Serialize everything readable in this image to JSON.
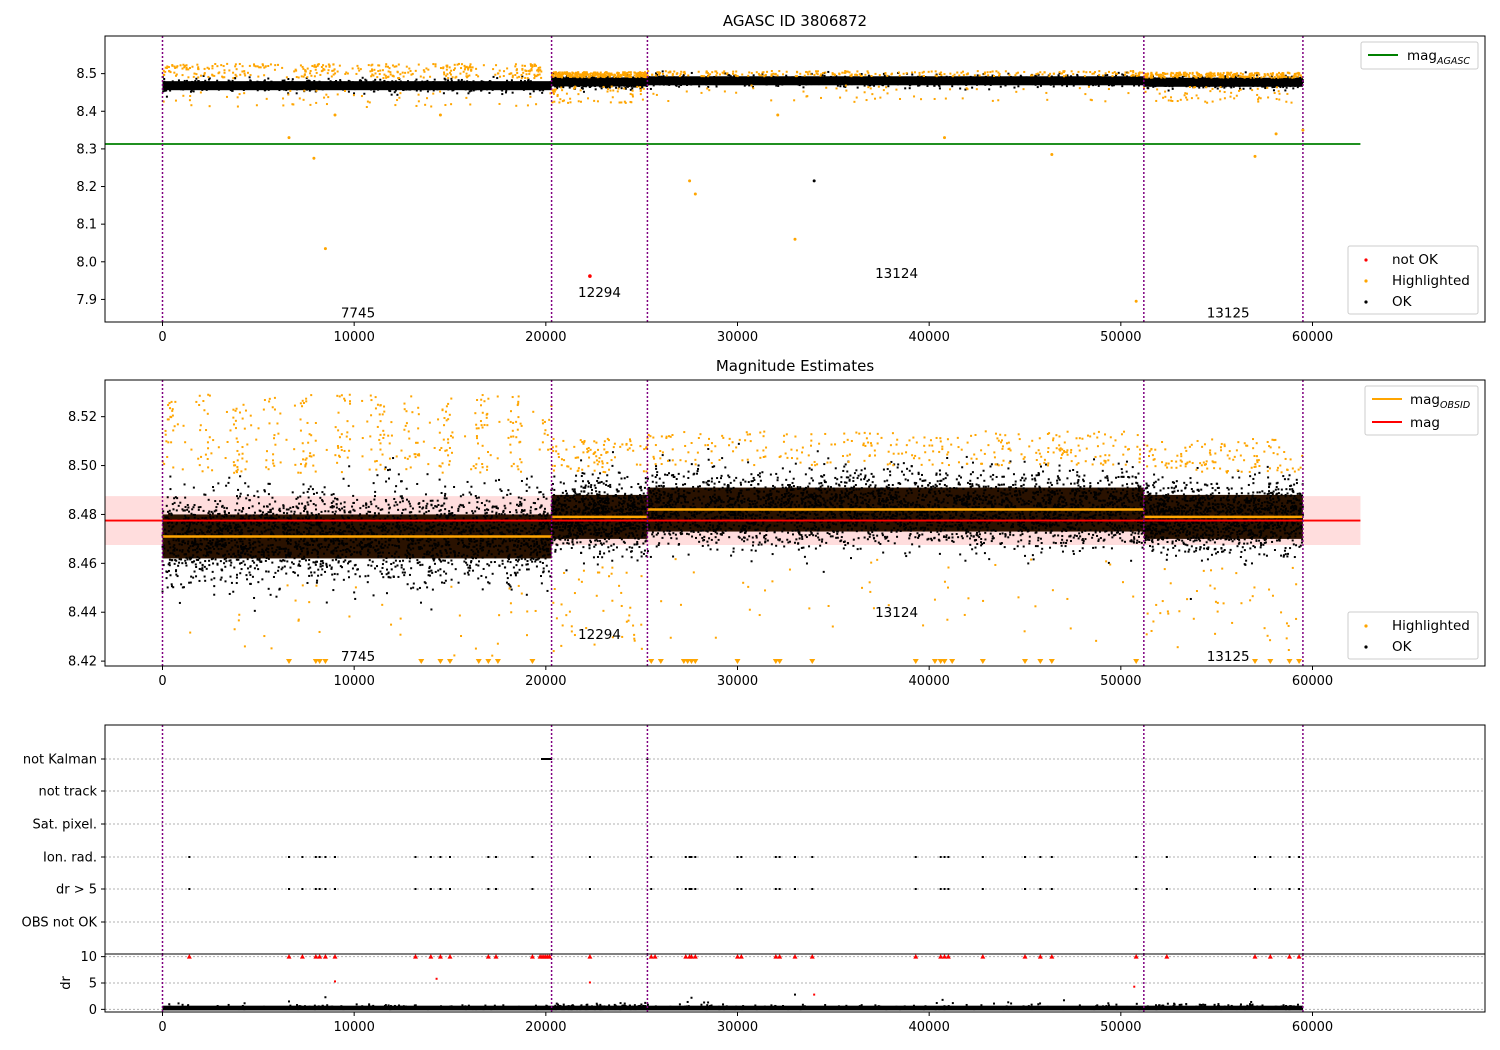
{
  "colors": {
    "ok": "#000000",
    "highlighted": "#ffa500",
    "not_ok": "#ff0000",
    "agasc_line": "#008000",
    "mag_line": "#ff0000",
    "obsid_line": "#ffa500",
    "obsid_boundary": "#800080",
    "mag_band": "#ffb3b3",
    "obsid_band": "#2a1200"
  },
  "chart_data": [
    {
      "id": "top",
      "type": "scatter",
      "title": "AGASC ID 3806872",
      "xlim": [
        -3000,
        69000
      ],
      "ylim": [
        7.84,
        8.6
      ],
      "x_ticks": [
        0,
        10000,
        20000,
        30000,
        40000,
        50000,
        60000
      ],
      "y_ticks": [
        7.9,
        8.0,
        8.1,
        8.2,
        8.3,
        8.4,
        8.5
      ],
      "y_tick_labels": [
        "7.9",
        "8.0",
        "8.1",
        "8.2",
        "8.3",
        "8.4",
        "8.5"
      ],
      "agasc_mag": 8.313,
      "obsids": [
        {
          "label": "7745",
          "x": 10200,
          "y": 7.865
        },
        {
          "label": "12294",
          "x": 22800,
          "y": 7.92
        },
        {
          "label": "13124",
          "x": 38300,
          "y": 7.97
        },
        {
          "label": "13125",
          "x": 55600,
          "y": 7.865
        }
      ],
      "legend_top": [
        {
          "label": "mag",
          "sub": "AGASC"
        }
      ],
      "legend_bottom": [
        "not OK",
        "Highlighted",
        "OK"
      ],
      "outliers_highlighted": [
        [
          6600,
          8.33
        ],
        [
          7900,
          8.275
        ],
        [
          8500,
          8.035
        ],
        [
          27500,
          8.215
        ],
        [
          27800,
          8.18
        ],
        [
          33000,
          8.06
        ],
        [
          50800,
          7.895
        ],
        [
          46400,
          8.285
        ],
        [
          57000,
          8.28
        ],
        [
          32100,
          8.39
        ],
        [
          40800,
          8.33
        ],
        [
          58100,
          8.34
        ],
        [
          59500,
          8.35
        ],
        [
          9000,
          8.39
        ],
        [
          14500,
          8.39
        ]
      ],
      "outliers_black": [
        [
          34000,
          8.215
        ]
      ],
      "outliers_not_ok": [
        [
          22300,
          7.962
        ]
      ]
    },
    {
      "id": "middle",
      "type": "scatter",
      "title": "Magnitude Estimates",
      "xlim": [
        -3000,
        69000
      ],
      "ylim": [
        8.418,
        8.535
      ],
      "x_ticks": [
        0,
        10000,
        20000,
        30000,
        40000,
        50000,
        60000
      ],
      "y_ticks": [
        8.42,
        8.44,
        8.46,
        8.48,
        8.5,
        8.52
      ],
      "y_tick_labels": [
        "8.42",
        "8.44",
        "8.46",
        "8.48",
        "8.50",
        "8.52"
      ],
      "mag": 8.4775,
      "mag_band": [
        8.4675,
        8.4875
      ],
      "obsid_mags": [
        {
          "start": 0,
          "end": 20300,
          "mag": 8.471
        },
        {
          "start": 20300,
          "end": 25300,
          "mag": 8.479
        },
        {
          "start": 25300,
          "end": 51200,
          "mag": 8.482
        },
        {
          "start": 51200,
          "end": 59500,
          "mag": 8.479
        }
      ],
      "obsids": [
        {
          "label": "7745",
          "x": 10200,
          "y": 8.422
        },
        {
          "label": "12294",
          "x": 22800,
          "y": 8.431
        },
        {
          "label": "13124",
          "x": 38300,
          "y": 8.44
        },
        {
          "label": "13125",
          "x": 55600,
          "y": 8.422
        }
      ],
      "legend_top": [
        {
          "label": "mag",
          "sub": "OBSID"
        },
        {
          "label": "mag",
          "sub": ""
        }
      ],
      "legend_bottom": [
        "Highlighted",
        "OK"
      ],
      "low_markers_x": [
        6600,
        8000,
        8200,
        8500,
        13500,
        14500,
        15000,
        16500,
        17000,
        17500,
        19300,
        25500,
        26000,
        27200,
        27400,
        27600,
        27800,
        30000,
        32000,
        32200,
        33900,
        39300,
        40300,
        40600,
        40800,
        41200,
        42800,
        45000,
        45800,
        46400,
        50800,
        57000,
        57800,
        58800,
        59300
      ]
    },
    {
      "id": "flags",
      "type": "scatter",
      "xlim": [
        -3000,
        69000
      ],
      "flag_labels": [
        "not Kalman",
        "not track",
        "Sat. pixel.",
        "Ion. rad.",
        "dr > 5",
        "OBS not OK"
      ],
      "flag_x": [
        1400,
        6600,
        7300,
        8000,
        8200,
        8500,
        9000,
        13200,
        14000,
        14500,
        15000,
        17000,
        17400,
        19300,
        22300,
        25500,
        27300,
        27500,
        27600,
        27800,
        30000,
        30200,
        32000,
        32200,
        33000,
        33900,
        39300,
        40600,
        40800,
        41000,
        42800,
        45000,
        45800,
        46400,
        50800,
        52400,
        57000,
        57800,
        58800,
        59300
      ],
      "not_kalman_range": [
        19800,
        20300
      ]
    },
    {
      "id": "dr",
      "type": "scatter",
      "ylabel": "dr",
      "xlim": [
        -3000,
        69000
      ],
      "ylim": [
        -0.5,
        10.5
      ],
      "x_ticks": [
        0,
        10000,
        20000,
        30000,
        40000,
        50000,
        60000
      ],
      "x_tick_labels": [
        "0",
        "10000",
        "20000",
        "30000",
        "40000",
        "50000",
        "60000"
      ],
      "y_ticks": [
        0,
        5,
        10
      ],
      "y_tick_labels": [
        "0",
        "5",
        "10"
      ],
      "red_at_10_x": [
        1400,
        6600,
        7300,
        8000,
        8200,
        8500,
        9000,
        13200,
        14000,
        14500,
        15000,
        17000,
        17400,
        19300,
        19700,
        19800,
        19900,
        20000,
        20100,
        20200,
        22300,
        25500,
        25700,
        27300,
        27500,
        27600,
        27800,
        30000,
        30200,
        32000,
        32200,
        33000,
        33900,
        39300,
        40600,
        40800,
        41000,
        42800,
        45000,
        45800,
        46400,
        50800,
        52400,
        57000,
        57800,
        58800,
        59300
      ],
      "red_mid": [
        [
          9000,
          5.3
        ],
        [
          14300,
          5.8
        ],
        [
          22300,
          5.1
        ],
        [
          34000,
          2.8
        ],
        [
          50700,
          4.3
        ]
      ],
      "black_mid": [
        [
          8500,
          2.3
        ],
        [
          6600,
          1.5
        ],
        [
          27400,
          1.4
        ],
        [
          27600,
          2.2
        ],
        [
          33000,
          2.8
        ],
        [
          40700,
          1.8
        ],
        [
          56800,
          1.4
        ]
      ]
    }
  ],
  "obsid_boundaries": [
    0,
    20300,
    25300,
    51200,
    59500
  ]
}
